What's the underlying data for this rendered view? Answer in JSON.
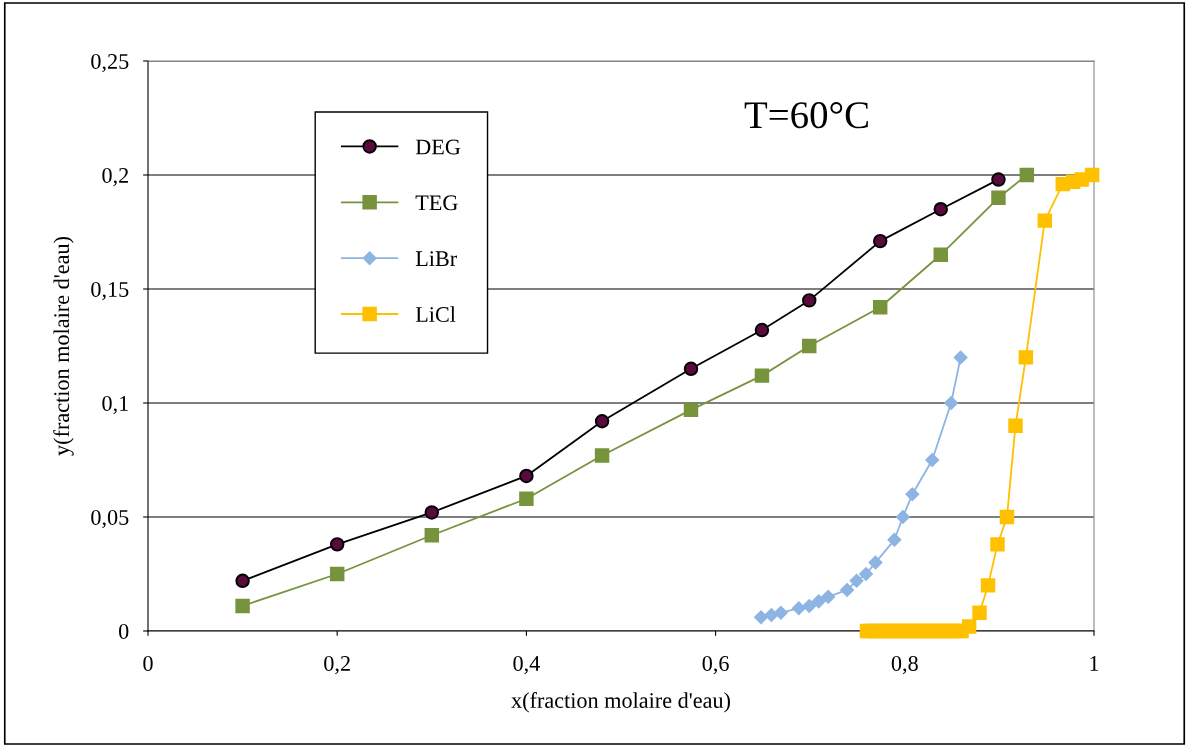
{
  "chart_data": {
    "type": "line",
    "xlabel": "x(fraction molaire d'eau)",
    "ylabel": "y(fraction molaire d'eau)",
    "annotations": [
      "T=60°C"
    ],
    "xlim": [
      0,
      1
    ],
    "xticks": [
      0,
      {
        "value": 0.2,
        "label": "0,2"
      },
      {
        "value": 0.4,
        "label": "0,4"
      },
      {
        "value": 0.6,
        "label": "0,6"
      },
      {
        "value": 0.8,
        "label": "0,8"
      },
      1
    ],
    "ylim": [
      0,
      0.25
    ],
    "yticks": [
      0,
      {
        "value": 0.05,
        "label": "0,05"
      },
      {
        "value": 0.1,
        "label": "0,1"
      },
      {
        "value": 0.15,
        "label": "0,15"
      },
      {
        "value": 0.2,
        "label": "0,2"
      },
      {
        "value": 0.25,
        "label": "0,25"
      }
    ],
    "grid": "y",
    "legend": "top left",
    "series": [
      {
        "name": "DEG",
        "color": "#000000",
        "marker": "circle",
        "x": [
          0.1,
          0.2,
          0.3,
          0.4,
          0.48,
          0.574,
          0.649,
          0.699,
          0.774,
          0.838,
          0.899
        ],
        "values": [
          0.022,
          0.038,
          0.052,
          0.068,
          0.092,
          0.115,
          0.132,
          0.145,
          0.171,
          0.185,
          0.198
        ]
      },
      {
        "name": "TEG",
        "color": "#77933c",
        "marker": "square",
        "x": [
          0.1,
          0.2,
          0.3,
          0.4,
          0.48,
          0.574,
          0.649,
          0.699,
          0.774,
          0.838,
          0.899,
          0.929
        ],
        "values": [
          0.011,
          0.025,
          0.042,
          0.058,
          0.077,
          0.097,
          0.112,
          0.125,
          0.142,
          0.165,
          0.19,
          0.2
        ]
      },
      {
        "name": "LiBr",
        "color": "#8db4e2",
        "marker": "diamond",
        "x": [
          0.648,
          0.659,
          0.669,
          0.688,
          0.699,
          0.709,
          0.719,
          0.739,
          0.749,
          0.759,
          0.769,
          0.789,
          0.798,
          0.808,
          0.829,
          0.849,
          0.859
        ],
        "values": [
          0.006,
          0.007,
          0.008,
          0.01,
          0.011,
          0.013,
          0.015,
          0.018,
          0.022,
          0.025,
          0.03,
          0.04,
          0.05,
          0.06,
          0.075,
          0.1,
          0.12
        ]
      },
      {
        "name": "LiCl",
        "color": "#ffc000",
        "marker": "square",
        "x": [
          0.76,
          0.765,
          0.77,
          0.775,
          0.78,
          0.785,
          0.79,
          0.795,
          0.8,
          0.805,
          0.81,
          0.815,
          0.82,
          0.825,
          0.83,
          0.835,
          0.84,
          0.845,
          0.85,
          0.855,
          0.86,
          0.868,
          0.879,
          0.888,
          0.898,
          0.908,
          0.917,
          0.928,
          0.948,
          0.967,
          0.978,
          0.987,
          0.998
        ],
        "values": [
          0,
          0,
          0,
          0,
          0,
          0,
          0,
          0,
          0,
          0,
          0,
          0,
          0,
          0,
          0,
          0,
          0,
          0,
          0,
          0,
          0,
          0.002,
          0.008,
          0.02,
          0.038,
          0.05,
          0.09,
          0.12,
          0.18,
          0.196,
          0.197,
          0.198,
          0.2
        ]
      }
    ]
  }
}
